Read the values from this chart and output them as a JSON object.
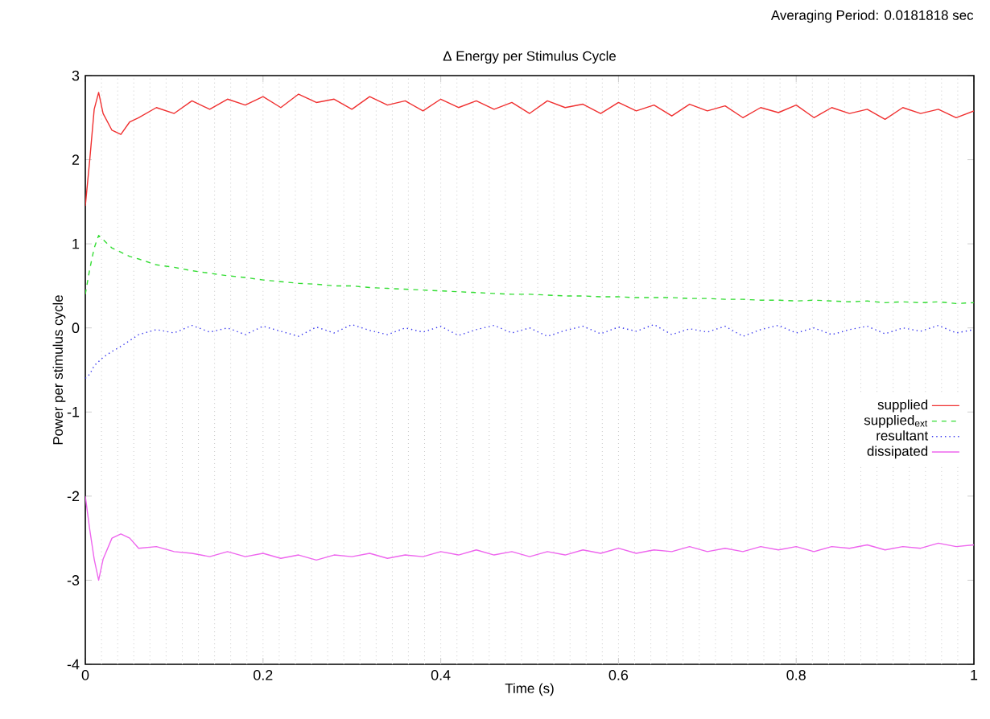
{
  "chart_data": {
    "type": "line",
    "title": "Δ Energy per Stimulus Cycle",
    "xlabel": "Time (s)",
    "ylabel": "Power per stimulus cycle",
    "annotations": [
      "Averaging Period: 0.0181818 sec"
    ],
    "x": [
      0,
      0.005,
      0.01,
      0.015,
      0.02,
      0.03,
      0.04,
      0.05,
      0.06,
      0.08,
      0.1,
      0.12,
      0.14,
      0.16,
      0.18,
      0.2,
      0.22,
      0.24,
      0.26,
      0.28,
      0.3,
      0.32,
      0.34,
      0.36,
      0.38,
      0.4,
      0.42,
      0.44,
      0.46,
      0.48,
      0.5,
      0.52,
      0.54,
      0.56,
      0.58,
      0.6,
      0.62,
      0.64,
      0.66,
      0.68,
      0.7,
      0.72,
      0.74,
      0.76,
      0.78,
      0.8,
      0.82,
      0.84,
      0.86,
      0.88,
      0.9,
      0.92,
      0.94,
      0.96,
      0.98,
      1.0
    ],
    "series": [
      {
        "name": "supplied",
        "color": "#f03030",
        "line_style": "solid",
        "values": [
          1.45,
          2.0,
          2.6,
          2.8,
          2.55,
          2.35,
          2.3,
          2.45,
          2.5,
          2.62,
          2.55,
          2.7,
          2.6,
          2.72,
          2.65,
          2.75,
          2.62,
          2.78,
          2.68,
          2.72,
          2.6,
          2.75,
          2.65,
          2.7,
          2.58,
          2.72,
          2.62,
          2.7,
          2.6,
          2.68,
          2.55,
          2.7,
          2.62,
          2.66,
          2.55,
          2.68,
          2.58,
          2.65,
          2.52,
          2.66,
          2.58,
          2.64,
          2.5,
          2.62,
          2.56,
          2.65,
          2.5,
          2.62,
          2.55,
          2.6,
          2.48,
          2.62,
          2.55,
          2.6,
          2.5,
          2.58
        ]
      },
      {
        "name": "supplied$_{ext}$",
        "color": "#33dd33",
        "line_style": "dashed",
        "values": [
          0.4,
          0.7,
          0.95,
          1.1,
          1.05,
          0.95,
          0.9,
          0.85,
          0.82,
          0.75,
          0.72,
          0.68,
          0.65,
          0.62,
          0.6,
          0.57,
          0.55,
          0.53,
          0.52,
          0.5,
          0.5,
          0.48,
          0.47,
          0.46,
          0.45,
          0.44,
          0.43,
          0.42,
          0.41,
          0.4,
          0.4,
          0.39,
          0.38,
          0.38,
          0.37,
          0.37,
          0.36,
          0.36,
          0.36,
          0.35,
          0.35,
          0.34,
          0.34,
          0.33,
          0.33,
          0.32,
          0.33,
          0.32,
          0.31,
          0.32,
          0.3,
          0.31,
          0.3,
          0.31,
          0.29,
          0.3
        ]
      },
      {
        "name": "resultant",
        "color": "#3333ee",
        "line_style": "dotted",
        "values": [
          -0.6,
          -0.55,
          -0.45,
          -0.4,
          -0.35,
          -0.28,
          -0.22,
          -0.15,
          -0.08,
          -0.02,
          -0.06,
          0.03,
          -0.05,
          0.0,
          -0.08,
          0.02,
          -0.04,
          -0.1,
          0.01,
          -0.06,
          0.04,
          -0.03,
          -0.08,
          0.0,
          -0.05,
          0.02,
          -0.09,
          -0.02,
          0.03,
          -0.06,
          0.0,
          -0.1,
          -0.03,
          0.02,
          -0.07,
          0.01,
          -0.04,
          0.04,
          -0.08,
          -0.01,
          -0.05,
          0.02,
          -0.1,
          -0.02,
          0.03,
          -0.06,
          0.0,
          -0.08,
          -0.02,
          0.02,
          -0.07,
          0.0,
          -0.04,
          0.03,
          -0.06,
          -0.02
        ]
      },
      {
        "name": "dissipated",
        "color": "#ee66ee",
        "line_style": "solid",
        "values": [
          -2.0,
          -2.4,
          -2.75,
          -3.0,
          -2.75,
          -2.5,
          -2.45,
          -2.5,
          -2.62,
          -2.6,
          -2.66,
          -2.68,
          -2.72,
          -2.66,
          -2.72,
          -2.68,
          -2.74,
          -2.7,
          -2.76,
          -2.7,
          -2.72,
          -2.68,
          -2.74,
          -2.7,
          -2.72,
          -2.66,
          -2.7,
          -2.64,
          -2.7,
          -2.66,
          -2.72,
          -2.66,
          -2.7,
          -2.64,
          -2.68,
          -2.62,
          -2.68,
          -2.64,
          -2.66,
          -2.6,
          -2.66,
          -2.62,
          -2.66,
          -2.6,
          -2.64,
          -2.6,
          -2.66,
          -2.6,
          -2.62,
          -2.58,
          -2.64,
          -2.6,
          -2.62,
          -2.56,
          -2.6,
          -2.58
        ]
      }
    ],
    "xlim": [
      0,
      1
    ],
    "ylim": [
      -4,
      3
    ],
    "xticks": [
      0,
      0.2,
      0.4,
      0.6,
      0.8,
      1
    ],
    "yticks": [
      -4,
      -3,
      -2,
      -1,
      0,
      1,
      2,
      3
    ],
    "legend": "right",
    "ref_lines": [
      {
        "axis": "x",
        "value": 0.0182,
        "color": "#c8c8c8",
        "line_style": "dotted"
      },
      {
        "axis": "x",
        "value": 0.0364,
        "color": "#c8c8c8",
        "line_style": "dotted"
      },
      {
        "axis": "x",
        "value": 0.0545,
        "color": "#c8c8c8",
        "line_style": "dotted"
      },
      {
        "axis": "x",
        "value": 0.0727,
        "color": "#c8c8c8",
        "line_style": "dotted"
      },
      {
        "axis": "x",
        "value": 0.0909,
        "color": "#c8c8c8",
        "line_style": "dotted"
      },
      {
        "axis": "x",
        "value": 0.1091,
        "color": "#c8c8c8",
        "line_style": "dotted"
      },
      {
        "axis": "x",
        "value": 0.1273,
        "color": "#c8c8c8",
        "line_style": "dotted"
      },
      {
        "axis": "x",
        "value": 0.1455,
        "color": "#c8c8c8",
        "line_style": "dotted"
      },
      {
        "axis": "x",
        "value": 0.1636,
        "color": "#c8c8c8",
        "line_style": "dotted"
      },
      {
        "axis": "x",
        "value": 0.1818,
        "color": "#c8c8c8",
        "line_style": "dotted"
      },
      {
        "axis": "x",
        "value": 0.2,
        "color": "#c8c8c8",
        "line_style": "dotted"
      },
      {
        "axis": "x",
        "value": 0.2182,
        "color": "#c8c8c8",
        "line_style": "dotted"
      },
      {
        "axis": "x",
        "value": 0.2364,
        "color": "#c8c8c8",
        "line_style": "dotted"
      },
      {
        "axis": "x",
        "value": 0.2545,
        "color": "#c8c8c8",
        "line_style": "dotted"
      },
      {
        "axis": "x",
        "value": 0.2727,
        "color": "#c8c8c8",
        "line_style": "dotted"
      },
      {
        "axis": "x",
        "value": 0.2909,
        "color": "#c8c8c8",
        "line_style": "dotted"
      },
      {
        "axis": "x",
        "value": 0.3091,
        "color": "#c8c8c8",
        "line_style": "dotted"
      },
      {
        "axis": "x",
        "value": 0.3273,
        "color": "#c8c8c8",
        "line_style": "dotted"
      },
      {
        "axis": "x",
        "value": 0.3455,
        "color": "#c8c8c8",
        "line_style": "dotted"
      },
      {
        "axis": "x",
        "value": 0.3636,
        "color": "#c8c8c8",
        "line_style": "dotted"
      },
      {
        "axis": "x",
        "value": 0.3818,
        "color": "#c8c8c8",
        "line_style": "dotted"
      },
      {
        "axis": "x",
        "value": 0.4,
        "color": "#c8c8c8",
        "line_style": "dotted"
      },
      {
        "axis": "x",
        "value": 0.4182,
        "color": "#c8c8c8",
        "line_style": "dotted"
      },
      {
        "axis": "x",
        "value": 0.4364,
        "color": "#c8c8c8",
        "line_style": "dotted"
      },
      {
        "axis": "x",
        "value": 0.4545,
        "color": "#c8c8c8",
        "line_style": "dotted"
      },
      {
        "axis": "x",
        "value": 0.4727,
        "color": "#c8c8c8",
        "line_style": "dotted"
      },
      {
        "axis": "x",
        "value": 0.4909,
        "color": "#c8c8c8",
        "line_style": "dotted"
      },
      {
        "axis": "x",
        "value": 0.5091,
        "color": "#c8c8c8",
        "line_style": "dotted"
      },
      {
        "axis": "x",
        "value": 0.5273,
        "color": "#c8c8c8",
        "line_style": "dotted"
      },
      {
        "axis": "x",
        "value": 0.5455,
        "color": "#c8c8c8",
        "line_style": "dotted"
      },
      {
        "axis": "x",
        "value": 0.5636,
        "color": "#c8c8c8",
        "line_style": "dotted"
      },
      {
        "axis": "x",
        "value": 0.5818,
        "color": "#c8c8c8",
        "line_style": "dotted"
      },
      {
        "axis": "x",
        "value": 0.6,
        "color": "#c8c8c8",
        "line_style": "dotted"
      },
      {
        "axis": "x",
        "value": 0.6182,
        "color": "#c8c8c8",
        "line_style": "dotted"
      },
      {
        "axis": "x",
        "value": 0.6364,
        "color": "#c8c8c8",
        "line_style": "dotted"
      },
      {
        "axis": "x",
        "value": 0.6545,
        "color": "#c8c8c8",
        "line_style": "dotted"
      },
      {
        "axis": "x",
        "value": 0.6727,
        "color": "#c8c8c8",
        "line_style": "dotted"
      },
      {
        "axis": "x",
        "value": 0.6909,
        "color": "#c8c8c8",
        "line_style": "dotted"
      },
      {
        "axis": "x",
        "value": 0.7091,
        "color": "#c8c8c8",
        "line_style": "dotted"
      },
      {
        "axis": "x",
        "value": 0.7273,
        "color": "#c8c8c8",
        "line_style": "dotted"
      },
      {
        "axis": "x",
        "value": 0.7455,
        "color": "#c8c8c8",
        "line_style": "dotted"
      },
      {
        "axis": "x",
        "value": 0.7636,
        "color": "#c8c8c8",
        "line_style": "dotted"
      },
      {
        "axis": "x",
        "value": 0.7818,
        "color": "#c8c8c8",
        "line_style": "dotted"
      },
      {
        "axis": "x",
        "value": 0.8,
        "color": "#c8c8c8",
        "line_style": "dotted"
      },
      {
        "axis": "x",
        "value": 0.8182,
        "color": "#c8c8c8",
        "line_style": "dotted"
      },
      {
        "axis": "x",
        "value": 0.8364,
        "color": "#c8c8c8",
        "line_style": "dotted"
      },
      {
        "axis": "x",
        "value": 0.8545,
        "color": "#c8c8c8",
        "line_style": "dotted"
      },
      {
        "axis": "x",
        "value": 0.8727,
        "color": "#c8c8c8",
        "line_style": "dotted"
      },
      {
        "axis": "x",
        "value": 0.8909,
        "color": "#c8c8c8",
        "line_style": "dotted"
      },
      {
        "axis": "x",
        "value": 0.9091,
        "color": "#c8c8c8",
        "line_style": "dotted"
      },
      {
        "axis": "x",
        "value": 0.9273,
        "color": "#c8c8c8",
        "line_style": "dotted"
      },
      {
        "axis": "x",
        "value": 0.9455,
        "color": "#c8c8c8",
        "line_style": "dotted"
      },
      {
        "axis": "x",
        "value": 0.9636,
        "color": "#c8c8c8",
        "line_style": "dotted"
      },
      {
        "axis": "x",
        "value": 0.9818,
        "color": "#c8c8c8",
        "line_style": "dotted"
      }
    ]
  }
}
